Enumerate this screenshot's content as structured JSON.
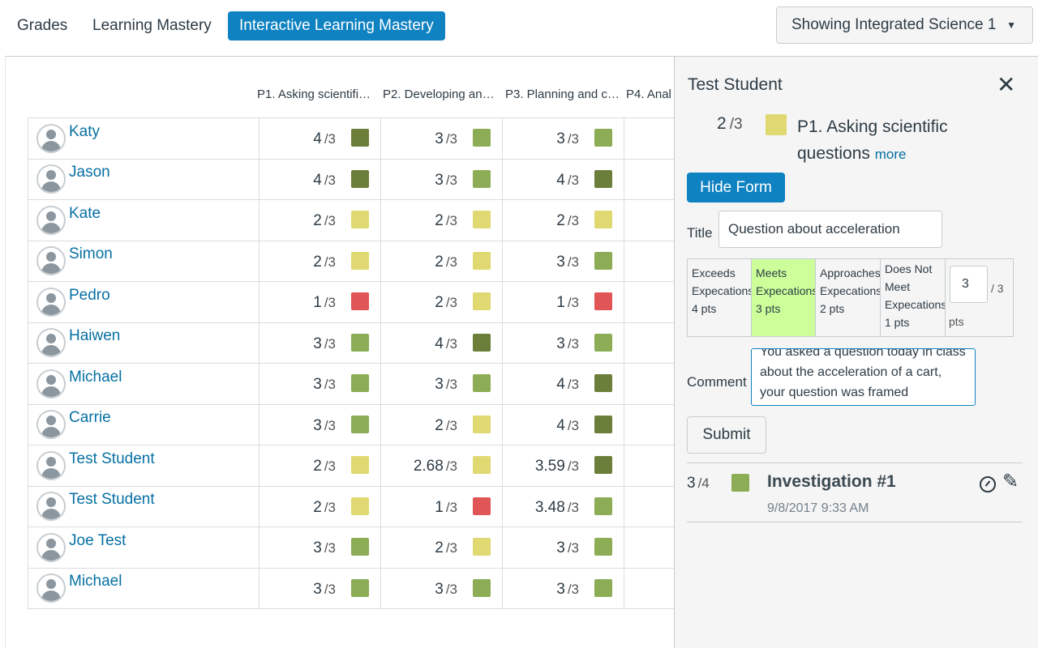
{
  "nav": {
    "tabs": [
      "Grades",
      "Learning Mastery",
      "Interactive Learning Mastery"
    ],
    "course_select": "Showing Integrated Science 1"
  },
  "columns": [
    "P1. Asking scientifi…",
    "P2. Developing an…",
    "P3. Planning and c…",
    "P4. Anal"
  ],
  "colors": {
    "exceeds": "#6b7f3a",
    "meets": "#8cad55",
    "approaches": "#e0d870",
    "does_not_meet": "#e05555"
  },
  "students": [
    {
      "name": "Katy",
      "scores": [
        {
          "v": "4",
          "d": "/3",
          "c": "exceeds"
        },
        {
          "v": "3",
          "d": "/3",
          "c": "meets"
        },
        {
          "v": "3",
          "d": "/3",
          "c": "meets"
        }
      ]
    },
    {
      "name": "Jason",
      "scores": [
        {
          "v": "4",
          "d": "/3",
          "c": "exceeds"
        },
        {
          "v": "3",
          "d": "/3",
          "c": "meets"
        },
        {
          "v": "4",
          "d": "/3",
          "c": "exceeds"
        }
      ]
    },
    {
      "name": "Kate",
      "scores": [
        {
          "v": "2",
          "d": "/3",
          "c": "approaches"
        },
        {
          "v": "2",
          "d": "/3",
          "c": "approaches"
        },
        {
          "v": "2",
          "d": "/3",
          "c": "approaches"
        }
      ]
    },
    {
      "name": "Simon",
      "scores": [
        {
          "v": "2",
          "d": "/3",
          "c": "approaches"
        },
        {
          "v": "2",
          "d": "/3",
          "c": "approaches"
        },
        {
          "v": "3",
          "d": "/3",
          "c": "meets"
        }
      ]
    },
    {
      "name": "Pedro",
      "scores": [
        {
          "v": "1",
          "d": "/3",
          "c": "does_not_meet"
        },
        {
          "v": "2",
          "d": "/3",
          "c": "approaches"
        },
        {
          "v": "1",
          "d": "/3",
          "c": "does_not_meet"
        }
      ]
    },
    {
      "name": "Haiwen",
      "scores": [
        {
          "v": "3",
          "d": "/3",
          "c": "meets"
        },
        {
          "v": "4",
          "d": "/3",
          "c": "exceeds"
        },
        {
          "v": "3",
          "d": "/3",
          "c": "meets"
        }
      ]
    },
    {
      "name": "Michael",
      "scores": [
        {
          "v": "3",
          "d": "/3",
          "c": "meets"
        },
        {
          "v": "3",
          "d": "/3",
          "c": "meets"
        },
        {
          "v": "4",
          "d": "/3",
          "c": "exceeds"
        }
      ]
    },
    {
      "name": "Carrie",
      "scores": [
        {
          "v": "3",
          "d": "/3",
          "c": "meets"
        },
        {
          "v": "2",
          "d": "/3",
          "c": "approaches"
        },
        {
          "v": "4",
          "d": "/3",
          "c": "exceeds"
        }
      ]
    },
    {
      "name": "Test Student",
      "scores": [
        {
          "v": "2",
          "d": "/3",
          "c": "approaches"
        },
        {
          "v": "2.68",
          "d": "/3",
          "c": "approaches"
        },
        {
          "v": "3.59",
          "d": "/3",
          "c": "exceeds"
        }
      ]
    },
    {
      "name": "Test Student",
      "scores": [
        {
          "v": "2",
          "d": "/3",
          "c": "approaches"
        },
        {
          "v": "1",
          "d": "/3",
          "c": "does_not_meet"
        },
        {
          "v": "3.48",
          "d": "/3",
          "c": "meets"
        }
      ]
    },
    {
      "name": "Joe Test",
      "scores": [
        {
          "v": "3",
          "d": "/3",
          "c": "meets"
        },
        {
          "v": "2",
          "d": "/3",
          "c": "approaches"
        },
        {
          "v": "3",
          "d": "/3",
          "c": "meets"
        }
      ]
    },
    {
      "name": "Michael",
      "scores": [
        {
          "v": "3",
          "d": "/3",
          "c": "meets"
        },
        {
          "v": "3",
          "d": "/3",
          "c": "meets"
        },
        {
          "v": "3",
          "d": "/3",
          "c": "meets"
        }
      ]
    }
  ],
  "panel": {
    "student_name": "Test Student",
    "score_value": "2",
    "score_denom": "/3",
    "outcome_title": "P1. Asking scientific questions",
    "more_link": "more",
    "hide_form_label": "Hide Form",
    "title_label": "Title",
    "title_value": "Question about acceleration",
    "rubric": [
      {
        "label": "Exceeds Expecations",
        "pts": "4 pts",
        "selected": false
      },
      {
        "label": "Meets Expecations",
        "pts": "3 pts",
        "selected": true
      },
      {
        "label": "Approaches Expecations",
        "pts": "2 pts",
        "selected": false
      },
      {
        "label": "Does Not Meet Expecations",
        "pts": "1 pts",
        "selected": false
      }
    ],
    "points_value": "3",
    "points_of": "/ 3",
    "points_label": "pts",
    "comment_label": "Comment",
    "comment_value": "You asked a question today in class about the acceleration of a cart, your question was framed",
    "submit_label": "Submit",
    "assignment": {
      "score": "3",
      "denom": "/4",
      "color": "meets",
      "title": "Investigation #1",
      "date": "9/8/2017 9:33 AM"
    }
  }
}
